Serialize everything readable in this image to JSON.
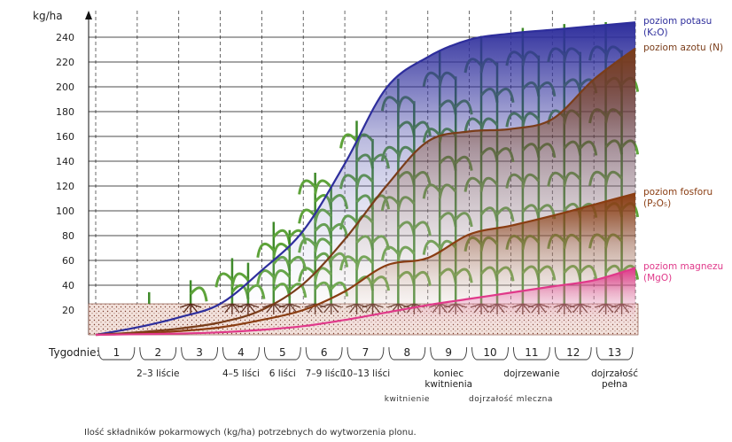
{
  "chart_data": {
    "type": "area",
    "y_label": "kg/ha",
    "ylim": [
      0,
      260
    ],
    "yticks": [
      20,
      40,
      60,
      80,
      100,
      120,
      140,
      160,
      180,
      200,
      220,
      240
    ],
    "xlim": [
      0,
      13
    ],
    "x": [
      0,
      1,
      2,
      3,
      4,
      5,
      6,
      7,
      8,
      9,
      10,
      11,
      12,
      13
    ],
    "series": [
      {
        "name": "poziom potasu (K₂O)",
        "color": "#2e2e9c",
        "values": [
          0,
          6,
          14,
          25,
          52,
          84,
          138,
          199,
          224,
          238,
          243,
          246,
          249,
          252
        ]
      },
      {
        "name": "poziom azotu (N)",
        "color": "#7a3d1a",
        "values": [
          0,
          2,
          5,
          10,
          20,
          41,
          77,
          120,
          156,
          164,
          166,
          174,
          206,
          231
        ]
      },
      {
        "name": "poziom fosforu (P₂O₅)",
        "color": "#8a3d12",
        "values": [
          0,
          1,
          3,
          6,
          12,
          20,
          35,
          56,
          62,
          81,
          88,
          96,
          105,
          114
        ]
      },
      {
        "name": "poziom magnezu (MgO)",
        "color": "#e0398a",
        "values": [
          0,
          0.5,
          1,
          2,
          4,
          7,
          12,
          18,
          24,
          29,
          34,
          39,
          44,
          54
        ]
      }
    ],
    "week_label": "Tygodnie:",
    "categories": [
      "1",
      "2",
      "3",
      "4",
      "5",
      "6",
      "7",
      "8",
      "9",
      "10",
      "11",
      "12",
      "13"
    ],
    "stages": [
      null,
      "2–3 liście",
      null,
      "4–5 liści",
      "6 liści",
      "7–9 liści",
      "10–13 liści",
      null,
      "koniec kwitnienia",
      null,
      "dojrzewanie",
      null,
      "dojrzałość pełna"
    ],
    "phases": [
      null,
      null,
      null,
      null,
      null,
      null,
      null,
      "kwitnienie",
      null,
      "dojrzałość mleczna",
      null,
      null,
      null
    ],
    "caption": "Ilość składników pokarmowych (kg/ha) potrzebnych do wytworzenia plonu."
  }
}
